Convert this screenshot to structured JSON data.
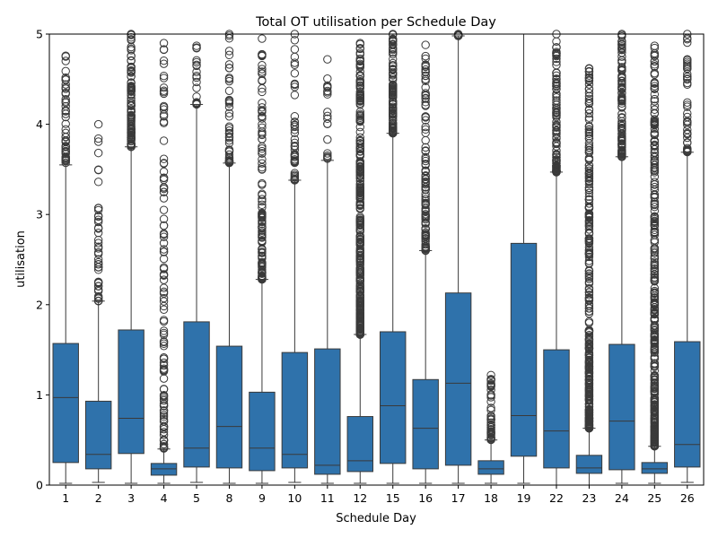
{
  "chart_data": {
    "type": "box",
    "title": "Total OT utilisation per Schedule Day",
    "xlabel": "Schedule Day",
    "ylabel": "utilisation",
    "ylim": [
      0,
      5
    ],
    "yticks": [
      "0",
      "1",
      "2",
      "3",
      "4",
      "5"
    ],
    "box_color": "#2f72ab",
    "edge_color": "#3a3a3a",
    "categories": [
      "1",
      "2",
      "3",
      "4",
      "5",
      "8",
      "9",
      "10",
      "11",
      "12",
      "15",
      "16",
      "17",
      "18",
      "19",
      "22",
      "23",
      "24",
      "25",
      "26"
    ],
    "boxes": [
      {
        "day": "1",
        "lower_whisker": 0.02,
        "q1": 0.25,
        "median": 0.97,
        "q3": 1.57,
        "upper_whisker": 3.55,
        "outlier_min": 3.55,
        "outlier_max": 4.76,
        "outlier_density": "medium"
      },
      {
        "day": "2",
        "lower_whisker": 0.03,
        "q1": 0.18,
        "median": 0.34,
        "q3": 0.93,
        "upper_whisker": 2.04,
        "outlier_min": 2.04,
        "outlier_max": 4.0,
        "outlier_density": "medium"
      },
      {
        "day": "3",
        "lower_whisker": 0.02,
        "q1": 0.35,
        "median": 0.74,
        "q3": 1.72,
        "upper_whisker": 3.75,
        "outlier_min": 3.75,
        "outlier_max": 5.0,
        "outlier_density": "high"
      },
      {
        "day": "4",
        "lower_whisker": 0.02,
        "q1": 0.11,
        "median": 0.18,
        "q3": 0.24,
        "upper_whisker": 0.4,
        "outlier_min": 0.4,
        "outlier_max": 4.9,
        "outlier_density": "high"
      },
      {
        "day": "5",
        "lower_whisker": 0.03,
        "q1": 0.2,
        "median": 0.41,
        "q3": 1.81,
        "upper_whisker": 4.22,
        "outlier_min": 4.22,
        "outlier_max": 4.87,
        "outlier_density": "low"
      },
      {
        "day": "8",
        "lower_whisker": 0.02,
        "q1": 0.19,
        "median": 0.65,
        "q3": 1.54,
        "upper_whisker": 3.57,
        "outlier_min": 3.57,
        "outlier_max": 5.0,
        "outlier_density": "medium"
      },
      {
        "day": "9",
        "lower_whisker": 0.02,
        "q1": 0.16,
        "median": 0.41,
        "q3": 1.03,
        "upper_whisker": 2.28,
        "outlier_min": 2.28,
        "outlier_max": 4.95,
        "outlier_density": "high"
      },
      {
        "day": "10",
        "lower_whisker": 0.03,
        "q1": 0.19,
        "median": 0.34,
        "q3": 1.47,
        "upper_whisker": 3.38,
        "outlier_min": 3.38,
        "outlier_max": 5.0,
        "outlier_density": "medium"
      },
      {
        "day": "11",
        "lower_whisker": 0.02,
        "q1": 0.12,
        "median": 0.22,
        "q3": 1.51,
        "upper_whisker": 3.6,
        "outlier_min": 3.6,
        "outlier_max": 4.72,
        "outlier_density": "low"
      },
      {
        "day": "12",
        "lower_whisker": 0.02,
        "q1": 0.15,
        "median": 0.27,
        "q3": 0.76,
        "upper_whisker": 1.67,
        "outlier_min": 1.67,
        "outlier_max": 4.9,
        "outlier_density": "very-high"
      },
      {
        "day": "15",
        "lower_whisker": 0.02,
        "q1": 0.24,
        "median": 0.88,
        "q3": 1.7,
        "upper_whisker": 3.9,
        "outlier_min": 3.9,
        "outlier_max": 5.0,
        "outlier_density": "high"
      },
      {
        "day": "16",
        "lower_whisker": 0.02,
        "q1": 0.18,
        "median": 0.63,
        "q3": 1.17,
        "upper_whisker": 2.6,
        "outlier_min": 2.6,
        "outlier_max": 4.88,
        "outlier_density": "high"
      },
      {
        "day": "17",
        "lower_whisker": 0.02,
        "q1": 0.22,
        "median": 1.13,
        "q3": 2.13,
        "upper_whisker": 4.98,
        "outlier_min": 4.98,
        "outlier_max": 5.0,
        "outlier_density": "low"
      },
      {
        "day": "18",
        "lower_whisker": 0.02,
        "q1": 0.12,
        "median": 0.18,
        "q3": 0.27,
        "upper_whisker": 0.5,
        "outlier_min": 0.5,
        "outlier_max": 1.22,
        "outlier_density": "medium"
      },
      {
        "day": "19",
        "lower_whisker": 0.02,
        "q1": 0.32,
        "median": 0.77,
        "q3": 2.68,
        "upper_whisker": 5.0,
        "outlier_min": null,
        "outlier_max": null,
        "outlier_density": "none"
      },
      {
        "day": "22",
        "lower_whisker": 0.0,
        "q1": 0.19,
        "median": 0.6,
        "q3": 1.5,
        "upper_whisker": 3.47,
        "outlier_min": 3.47,
        "outlier_max": 5.0,
        "outlier_density": "high"
      },
      {
        "day": "23",
        "lower_whisker": 0.0,
        "q1": 0.13,
        "median": 0.19,
        "q3": 0.33,
        "upper_whisker": 0.63,
        "outlier_min": 0.63,
        "outlier_max": 4.62,
        "outlier_density": "very-high"
      },
      {
        "day": "24",
        "lower_whisker": 0.02,
        "q1": 0.17,
        "median": 0.71,
        "q3": 1.56,
        "upper_whisker": 3.64,
        "outlier_min": 3.64,
        "outlier_max": 5.0,
        "outlier_density": "high"
      },
      {
        "day": "25",
        "lower_whisker": 0.02,
        "q1": 0.13,
        "median": 0.18,
        "q3": 0.25,
        "upper_whisker": 0.43,
        "outlier_min": 0.43,
        "outlier_max": 4.87,
        "outlier_density": "very-high"
      },
      {
        "day": "26",
        "lower_whisker": 0.03,
        "q1": 0.2,
        "median": 0.45,
        "q3": 1.59,
        "upper_whisker": 3.69,
        "outlier_min": 3.69,
        "outlier_max": 5.0,
        "outlier_density": "medium"
      }
    ]
  }
}
